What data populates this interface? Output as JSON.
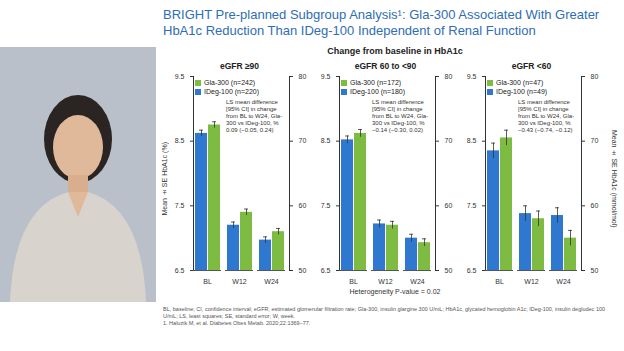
{
  "slide": {
    "title": "BRIGHT Pre-planned Subgroup Analysis¹: Gla-300 Associated With Greater HbA1c Reduction Than IDeg-100 Independent of Renal Function",
    "subtitle": "Change from baseline in HbA1c",
    "note": "Heterogeneity P-value = 0.02",
    "footnotes": [
      "BL, baseline; CI, confidence interval; eGFR, estimated glomerular filtration rate; Gla-300, insulin glargine 300 U/mL; HbA1c, glycated hemoglobin A1c; IDeg-100, insulin degludec 100 U/mL; LS, least squares; SE, standard error; W, week.",
      "1. Haluzik M, et al. Diabetes Obes Metab. 2020;22:1369–77."
    ]
  },
  "chart_data": [
    {
      "type": "bar",
      "title": "eGFR ≥90",
      "categories": [
        "BL",
        "W12",
        "W24"
      ],
      "series": [
        {
          "name": "Gla-300 (n=242)",
          "color": "#7dbb42",
          "values": [
            8.75,
            7.4,
            7.1
          ],
          "errors": [
            0.05,
            0.05,
            0.05
          ]
        },
        {
          "name": "IDeg-100 (n=220)",
          "color": "#2f78d0",
          "values": [
            8.62,
            7.2,
            6.97
          ],
          "errors": [
            0.05,
            0.05,
            0.05
          ]
        }
      ],
      "ylim": [
        6.5,
        9.5
      ],
      "yticks": [
        6.5,
        7.5,
        8.5,
        9.5
      ],
      "y2lim": [
        50,
        80
      ],
      "y2ticks": [
        50,
        60,
        70,
        80
      ],
      "y_label": "Mean ± SE HbA1c (%)",
      "legend": "top-left",
      "annotation": "LS mean difference [95% CI] in change from BL to W24, Gla-300 vs IDeg-100, %",
      "annotation_value": "0.09 (−0.05, 0.24)"
    },
    {
      "type": "bar",
      "title": "eGFR 60 to <90",
      "categories": [
        "BL",
        "W12",
        "W24"
      ],
      "series": [
        {
          "name": "Gla-300 (n=172)",
          "color": "#7dbb42",
          "values": [
            8.62,
            7.2,
            6.93
          ],
          "errors": [
            0.06,
            0.06,
            0.06
          ]
        },
        {
          "name": "IDeg-100 (n=180)",
          "color": "#2f78d0",
          "values": [
            8.52,
            7.22,
            7.0
          ],
          "errors": [
            0.06,
            0.06,
            0.06
          ]
        }
      ],
      "ylim": [
        6.5,
        9.5
      ],
      "yticks": [
        6.5,
        7.5,
        8.5,
        9.5
      ],
      "y2lim": [
        50,
        80
      ],
      "y2ticks": [
        50,
        60,
        70,
        80
      ],
      "legend": "top-left",
      "annotation": "LS mean difference [95% CI] in change from BL to W24, Gla-300 vs IDeg-100, %",
      "annotation_value": "−0.14 (−0.30, 0.02)"
    },
    {
      "type": "bar",
      "title": "eGFR <60",
      "categories": [
        "BL",
        "W12",
        "W24"
      ],
      "series": [
        {
          "name": "Gla-300 (n=47)",
          "color": "#7dbb42",
          "values": [
            8.55,
            7.3,
            7.0
          ],
          "errors": [
            0.12,
            0.12,
            0.12
          ]
        },
        {
          "name": "IDeg-100 (n=49)",
          "color": "#2f78d0",
          "values": [
            8.35,
            7.38,
            7.35
          ],
          "errors": [
            0.12,
            0.12,
            0.12
          ]
        }
      ],
      "ylim": [
        6.5,
        9.5
      ],
      "yticks": [
        6.5,
        7.5,
        8.5,
        9.5
      ],
      "y2lim": [
        50,
        80
      ],
      "y2ticks": [
        50,
        60,
        70,
        80
      ],
      "y2_label": "Mean ± SE HbA1c (mmol/mol)",
      "legend": "top-left",
      "annotation": "LS mean difference [95% CI] in change from BL to W24, Gla-300 vs IDeg-100, %",
      "annotation_value": "−0.43 (−0.74, −0.12)"
    }
  ]
}
